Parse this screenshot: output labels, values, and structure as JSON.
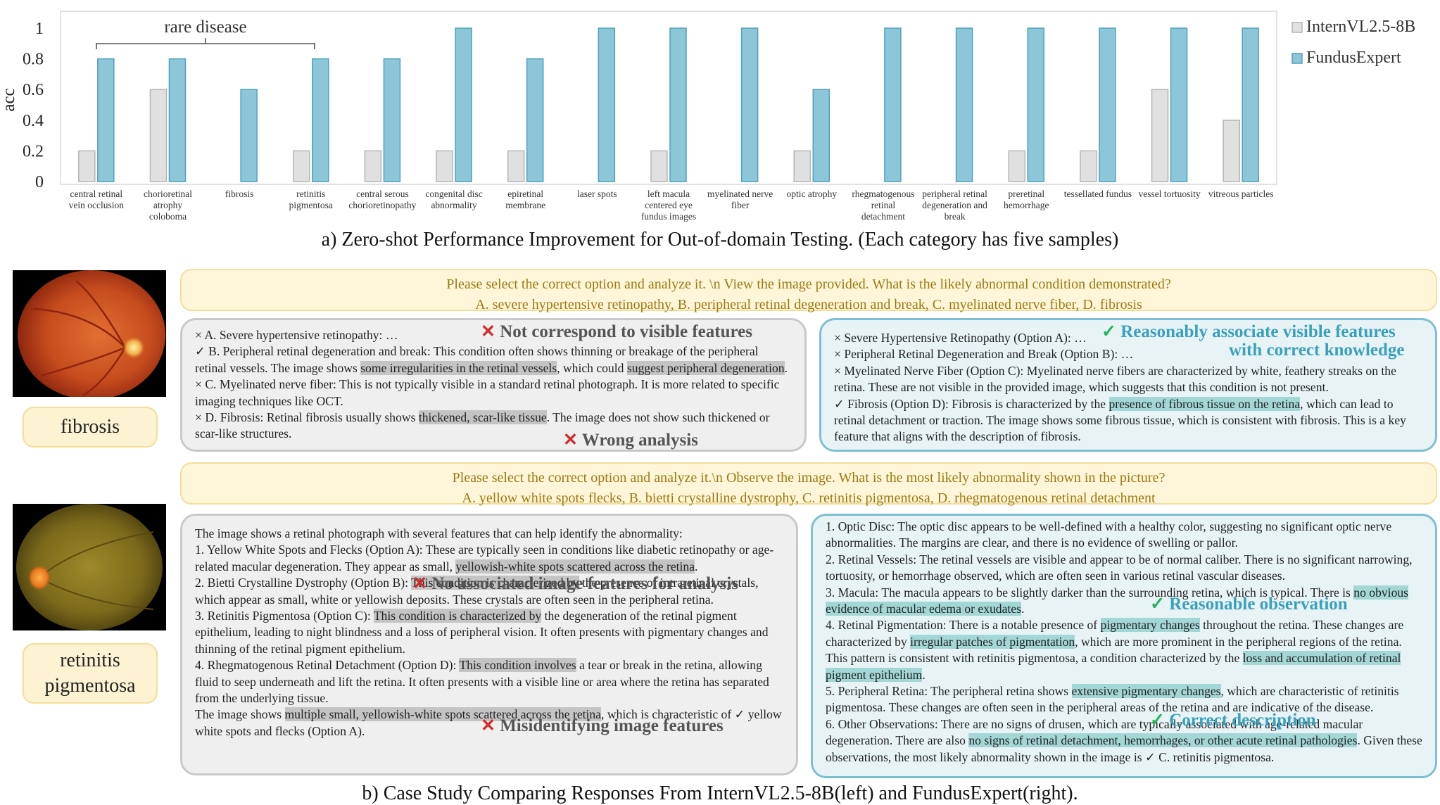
{
  "chart_data": {
    "type": "bar",
    "ylabel": "acc",
    "ylim": [
      0,
      1
    ],
    "yticks": [
      "0",
      "0.2",
      "0.4",
      "0.6",
      "0.8",
      "1"
    ],
    "categories": [
      [
        "central retinal",
        "vein occlusion"
      ],
      [
        "chorioretinal",
        "atrophy",
        "coloboma"
      ],
      [
        "fibrosis"
      ],
      [
        "retinitis",
        "pigmentosa"
      ],
      [
        "central serous",
        "chorioretinopathy"
      ],
      [
        "congenital disc",
        "abnormality"
      ],
      [
        "epiretinal",
        "membrane"
      ],
      [
        "laser spots"
      ],
      [
        "left macula",
        "centered eye",
        "fundus images"
      ],
      [
        "myelinated nerve",
        "fiber"
      ],
      [
        "optic atrophy"
      ],
      [
        "rhegmatogenous",
        "retinal",
        "detachment"
      ],
      [
        "peripheral retinal",
        "degeneration and",
        "break"
      ],
      [
        "preretinal",
        "hemorrhage"
      ],
      [
        "tessellated fundus"
      ],
      [
        "vessel tortuosity"
      ],
      [
        "vitreous particles"
      ]
    ],
    "series": [
      {
        "name": "InternVL2.5-8B",
        "color": "#e0e0e0",
        "stroke": "#b5b5b5",
        "values": [
          0.2,
          0.6,
          0,
          0.2,
          0.2,
          0.2,
          0.2,
          0,
          0.2,
          0,
          0.2,
          0,
          0,
          0.2,
          0.2,
          0.6,
          0.4
        ]
      },
      {
        "name": "FundusExpert",
        "color": "#8cc6d8",
        "stroke": "#4ea2bd",
        "values": [
          0.8,
          0.8,
          0.6,
          0.8,
          0.8,
          1.0,
          0.8,
          1.0,
          1.0,
          1.0,
          0.6,
          1.0,
          1.0,
          1.0,
          1.0,
          1.0,
          1.0
        ]
      }
    ],
    "annotation": "rare disease",
    "legend": "top-right"
  },
  "caption_a": "a) Zero-shot Performance Improvement for Out-of-domain Testing. (Each category has five samples)",
  "caption_b": "b)  Case Study Comparing Responses From InternVL2.5-8B(left) and FundusExpert(right).",
  "case1": {
    "label": "fibrosis",
    "question": [
      "Please select the correct option and analyze it. \\n View the image provided. What is the likely abnormal condition demonstrated?",
      "A. severe hypertensive retinopathy, B. peripheral retinal degeneration and break, C. myelinated nerve fiber, D. fibrosis"
    ],
    "tag_left_1": "Not correspond to visible features",
    "tag_left_2": "Wrong analysis",
    "tag_right_1": "Reasonably associate visible features",
    "tag_right_2": "with correct knowledge"
  },
  "case2": {
    "label_1": "retinitis",
    "label_2": "pigmentosa",
    "question": [
      "Please select the correct option and analyze it.\\n Observe the image. What is the most likely abnormality shown in the picture?",
      "A. yellow white spots flecks, B. bietti crystalline dystrophy, C. retinitis pigmentosa, D. rhegmatogenous retinal detachment"
    ],
    "tag_left_1": "No associated image features for analysis",
    "tag_left_2": "Misidentifying image features",
    "tag_right_1": "Reasonable observation",
    "tag_right_2": "Correct description"
  }
}
